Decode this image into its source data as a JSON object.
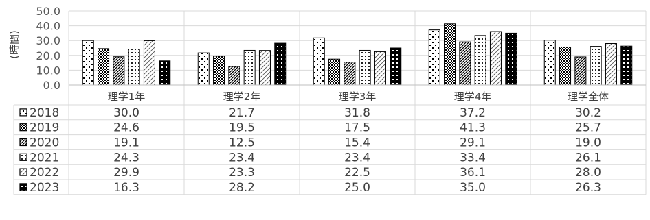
{
  "chart_data": {
    "type": "bar",
    "ylabel": "(時間)",
    "ylim": [
      0,
      50
    ],
    "yticks": [
      "0.0",
      "10.0",
      "20.0",
      "30.0",
      "40.0",
      "50.0"
    ],
    "grid": true,
    "legend": "data-table",
    "categories": [
      "理学1年",
      "理学2年",
      "理学3年",
      "理学4年",
      "理学全体"
    ],
    "series": [
      {
        "name": "2018",
        "values": [
          30.0,
          21.7,
          31.8,
          37.2,
          30.2
        ],
        "labels": [
          "30.0",
          "21.7",
          "31.8",
          "37.2",
          "30.2"
        ],
        "pattern": "dots-sparse"
      },
      {
        "name": "2019",
        "values": [
          24.6,
          19.5,
          17.5,
          41.3,
          25.7
        ],
        "labels": [
          "24.6",
          "19.5",
          "17.5",
          "41.3",
          "25.7"
        ],
        "pattern": "checker"
      },
      {
        "name": "2020",
        "values": [
          19.1,
          12.5,
          15.4,
          29.1,
          19.0
        ],
        "labels": [
          "19.1",
          "12.5",
          "15.4",
          "29.1",
          "19.0"
        ],
        "pattern": "diagonal-dense"
      },
      {
        "name": "2021",
        "values": [
          24.3,
          23.4,
          23.4,
          33.4,
          26.1
        ],
        "labels": [
          "24.3",
          "23.4",
          "23.4",
          "33.4",
          "26.1"
        ],
        "pattern": "dots-grid"
      },
      {
        "name": "2022",
        "values": [
          29.9,
          23.3,
          22.5,
          36.1,
          28.0
        ],
        "labels": [
          "29.9",
          "23.3",
          "22.5",
          "36.1",
          "28.0"
        ],
        "pattern": "diagonal-light"
      },
      {
        "name": "2023",
        "values": [
          16.3,
          28.2,
          25.0,
          35.0,
          26.3
        ],
        "labels": [
          "16.3",
          "28.2",
          "25.0",
          "35.0",
          "26.3"
        ],
        "pattern": "dark-dots"
      }
    ]
  }
}
